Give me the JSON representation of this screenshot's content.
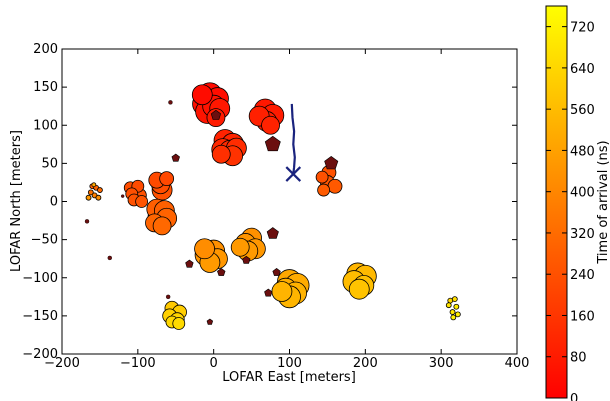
{
  "chart_data": {
    "type": "scatter",
    "xlabel": "LOFAR East [meters]",
    "ylabel": "LOFAR North [meters]",
    "xlim": [
      -200,
      400
    ],
    "ylim": [
      -200,
      200
    ],
    "xticks": [
      "-200",
      "-100",
      "0",
      "100",
      "200",
      "300",
      "400"
    ],
    "yticks": [
      "-200",
      "-150",
      "-100",
      "-50",
      "0",
      "50",
      "100",
      "150",
      "200"
    ],
    "colorbar": {
      "label": "Time of arrival (ns)",
      "range": [
        0,
        760
      ],
      "colormap": "autumn",
      "ticks": [
        "0",
        "80",
        "160",
        "240",
        "320",
        "400",
        "480",
        "560",
        "640",
        "720"
      ]
    },
    "track": {
      "color": "#1a237e",
      "points": [
        [
          103,
          128
        ],
        [
          104,
          110
        ],
        [
          106,
          92
        ],
        [
          105,
          75
        ],
        [
          107,
          58
        ],
        [
          106,
          45
        ],
        [
          105,
          36
        ]
      ],
      "marker": {
        "x": 105,
        "y": 36,
        "symbol": "x"
      }
    },
    "antennas": [
      {
        "station": "A",
        "x": -5,
        "y": 140,
        "r": 12,
        "t": 30
      },
      {
        "station": "A",
        "x": 5,
        "y": 135,
        "r": 11,
        "t": 40
      },
      {
        "station": "A",
        "x": -12,
        "y": 128,
        "r": 12,
        "t": 45
      },
      {
        "station": "A",
        "x": 0,
        "y": 125,
        "r": 11,
        "t": 55
      },
      {
        "station": "A",
        "x": -8,
        "y": 118,
        "r": 12,
        "t": 60
      },
      {
        "station": "A",
        "x": 8,
        "y": 122,
        "r": 10,
        "t": 70
      },
      {
        "station": "A",
        "x": -15,
        "y": 140,
        "r": 10,
        "t": 35
      },
      {
        "station": "A",
        "x": 3,
        "y": 110,
        "r": 9,
        "t": 80
      },
      {
        "station": "B",
        "x": 68,
        "y": 120,
        "r": 11,
        "t": 70
      },
      {
        "station": "B",
        "x": 78,
        "y": 113,
        "r": 11,
        "t": 80
      },
      {
        "station": "B",
        "x": 70,
        "y": 105,
        "r": 10,
        "t": 90
      },
      {
        "station": "B",
        "x": 60,
        "y": 112,
        "r": 10,
        "t": 95
      },
      {
        "station": "B",
        "x": 75,
        "y": 100,
        "r": 9,
        "t": 100
      },
      {
        "station": "C",
        "x": 15,
        "y": 80,
        "r": 11,
        "t": 100
      },
      {
        "station": "C",
        "x": 25,
        "y": 75,
        "r": 11,
        "t": 110
      },
      {
        "station": "C",
        "x": 12,
        "y": 68,
        "r": 11,
        "t": 120
      },
      {
        "station": "C",
        "x": 22,
        "y": 66,
        "r": 11,
        "t": 125
      },
      {
        "station": "C",
        "x": 30,
        "y": 70,
        "r": 10,
        "t": 130
      },
      {
        "station": "C",
        "x": 10,
        "y": 62,
        "r": 9,
        "t": 140
      },
      {
        "station": "C",
        "x": 25,
        "y": 60,
        "r": 10,
        "t": 150
      },
      {
        "station": "D",
        "x": -75,
        "y": 28,
        "r": 8,
        "t": 220
      },
      {
        "station": "D",
        "x": -62,
        "y": 30,
        "r": 7,
        "t": 215
      },
      {
        "station": "D",
        "x": -70,
        "y": 22,
        "r": 9,
        "t": 230
      },
      {
        "station": "D",
        "x": -68,
        "y": 15,
        "r": 10,
        "t": 240
      },
      {
        "station": "E",
        "x": -110,
        "y": 18,
        "r": 6,
        "t": 230
      },
      {
        "station": "E",
        "x": -100,
        "y": 20,
        "r": 6,
        "t": 225
      },
      {
        "station": "E",
        "x": -108,
        "y": 10,
        "r": 6,
        "t": 235
      },
      {
        "station": "E",
        "x": -98,
        "y": 8,
        "r": 7,
        "t": 240
      },
      {
        "station": "E",
        "x": -105,
        "y": 2,
        "r": 6,
        "t": 245
      },
      {
        "station": "E",
        "x": -95,
        "y": 0,
        "r": 6,
        "t": 250
      },
      {
        "station": "F",
        "x": -75,
        "y": -10,
        "r": 10,
        "t": 280
      },
      {
        "station": "F",
        "x": -65,
        "y": -12,
        "r": 10,
        "t": 285
      },
      {
        "station": "F",
        "x": -72,
        "y": -20,
        "r": 11,
        "t": 290
      },
      {
        "station": "F",
        "x": -62,
        "y": -22,
        "r": 10,
        "t": 295
      },
      {
        "station": "F",
        "x": -78,
        "y": -28,
        "r": 9,
        "t": 300
      },
      {
        "station": "F",
        "x": -68,
        "y": -32,
        "r": 9,
        "t": 310
      },
      {
        "station": "G",
        "x": 143,
        "y": 32,
        "r": 6,
        "t": 240
      },
      {
        "station": "G",
        "x": 152,
        "y": 38,
        "r": 7,
        "t": 245
      },
      {
        "station": "G",
        "x": 150,
        "y": 25,
        "r": 7,
        "t": 255
      },
      {
        "station": "G",
        "x": 160,
        "y": 20,
        "r": 7,
        "t": 265
      },
      {
        "station": "G",
        "x": 145,
        "y": 15,
        "r": 6,
        "t": 270
      },
      {
        "station": "H",
        "x": -160,
        "y": 20,
        "r": 2.5,
        "t": 280
      },
      {
        "station": "H",
        "x": -155,
        "y": 18,
        "r": 2.5,
        "t": 300
      },
      {
        "station": "H",
        "x": -150,
        "y": 15,
        "r": 2.5,
        "t": 320
      },
      {
        "station": "H",
        "x": -162,
        "y": 12,
        "r": 2.5,
        "t": 340
      },
      {
        "station": "H",
        "x": -157,
        "y": 8,
        "r": 2.5,
        "t": 380
      },
      {
        "station": "H",
        "x": -152,
        "y": 5,
        "r": 2.5,
        "t": 420
      },
      {
        "station": "H",
        "x": -165,
        "y": 5,
        "r": 2.5,
        "t": 450
      },
      {
        "station": "H",
        "x": -158,
        "y": 22,
        "r": 2,
        "t": 500
      },
      {
        "station": "I",
        "x": 0,
        "y": -65,
        "r": 11,
        "t": 430
      },
      {
        "station": "I",
        "x": -10,
        "y": -70,
        "r": 11,
        "t": 440
      },
      {
        "station": "I",
        "x": 5,
        "y": -75,
        "r": 10,
        "t": 450
      },
      {
        "station": "I",
        "x": -5,
        "y": -80,
        "r": 10,
        "t": 460
      },
      {
        "station": "I",
        "x": -12,
        "y": -62,
        "r": 10,
        "t": 420
      },
      {
        "station": "J",
        "x": 50,
        "y": -48,
        "r": 10,
        "t": 430
      },
      {
        "station": "J",
        "x": 42,
        "y": -55,
        "r": 10,
        "t": 440
      },
      {
        "station": "J",
        "x": 55,
        "y": -62,
        "r": 10,
        "t": 450
      },
      {
        "station": "J",
        "x": 45,
        "y": -65,
        "r": 10,
        "t": 460
      },
      {
        "station": "J",
        "x": 35,
        "y": -60,
        "r": 9,
        "t": 455
      },
      {
        "station": "K",
        "x": 100,
        "y": -105,
        "r": 12,
        "t": 500
      },
      {
        "station": "K",
        "x": 110,
        "y": -110,
        "r": 12,
        "t": 510
      },
      {
        "station": "K",
        "x": 95,
        "y": -115,
        "r": 11,
        "t": 520
      },
      {
        "station": "K",
        "x": 108,
        "y": -120,
        "r": 11,
        "t": 530
      },
      {
        "station": "K",
        "x": 100,
        "y": -125,
        "r": 11,
        "t": 540
      },
      {
        "station": "K",
        "x": 90,
        "y": -118,
        "r": 10,
        "t": 535
      },
      {
        "station": "L",
        "x": 190,
        "y": -95,
        "r": 11,
        "t": 540
      },
      {
        "station": "L",
        "x": 200,
        "y": -98,
        "r": 11,
        "t": 550
      },
      {
        "station": "L",
        "x": 185,
        "y": -105,
        "r": 11,
        "t": 560
      },
      {
        "station": "L",
        "x": 198,
        "y": -110,
        "r": 10,
        "t": 570
      },
      {
        "station": "L",
        "x": 192,
        "y": -115,
        "r": 10,
        "t": 580
      },
      {
        "station": "M",
        "x": -55,
        "y": -140,
        "r": 7,
        "t": 600
      },
      {
        "station": "M",
        "x": -45,
        "y": -145,
        "r": 7,
        "t": 610
      },
      {
        "station": "M",
        "x": -58,
        "y": -150,
        "r": 7,
        "t": 620
      },
      {
        "station": "M",
        "x": -48,
        "y": -155,
        "r": 7,
        "t": 630
      },
      {
        "station": "M",
        "x": -55,
        "y": -158,
        "r": 6,
        "t": 640
      },
      {
        "station": "M",
        "x": -46,
        "y": -160,
        "r": 6,
        "t": 650
      },
      {
        "station": "N",
        "x": 312,
        "y": -130,
        "r": 2.5,
        "t": 640
      },
      {
        "station": "N",
        "x": 318,
        "y": -128,
        "r": 2.5,
        "t": 660
      },
      {
        "station": "N",
        "x": 310,
        "y": -136,
        "r": 2.5,
        "t": 680
      },
      {
        "station": "N",
        "x": 320,
        "y": -138,
        "r": 2.5,
        "t": 700
      },
      {
        "station": "N",
        "x": 315,
        "y": -145,
        "r": 2.5,
        "t": 690
      },
      {
        "station": "N",
        "x": 322,
        "y": -148,
        "r": 2.5,
        "t": 710
      },
      {
        "station": "N",
        "x": 316,
        "y": -152,
        "r": 2.5,
        "t": 720
      }
    ],
    "markers": [
      {
        "symbol": "pentagon",
        "x": 3,
        "y": 113,
        "size": 5
      },
      {
        "symbol": "pentagon",
        "x": 78,
        "y": 75,
        "size": 8
      },
      {
        "symbol": "pentagon",
        "x": 155,
        "y": 50,
        "size": 7
      },
      {
        "symbol": "pentagon",
        "x": -50,
        "y": 57,
        "size": 4
      },
      {
        "symbol": "pentagon",
        "x": 78,
        "y": -42,
        "size": 6
      },
      {
        "symbol": "pentagon",
        "x": 43,
        "y": -77,
        "size": 4
      },
      {
        "symbol": "pentagon",
        "x": -32,
        "y": -82,
        "size": 4
      },
      {
        "symbol": "pentagon",
        "x": 10,
        "y": -93,
        "size": 4
      },
      {
        "symbol": "pentagon",
        "x": 83,
        "y": -93,
        "size": 4
      },
      {
        "symbol": "pentagon",
        "x": 72,
        "y": -120,
        "size": 4
      },
      {
        "symbol": "pentagon",
        "x": -5,
        "y": -158,
        "size": 3
      },
      {
        "symbol": "dot",
        "x": -57,
        "y": 130,
        "size": 2
      },
      {
        "symbol": "dot",
        "x": -167,
        "y": -26,
        "size": 2
      },
      {
        "symbol": "dot",
        "x": -137,
        "y": -74,
        "size": 2
      },
      {
        "symbol": "dot",
        "x": -60,
        "y": -125,
        "size": 2
      },
      {
        "symbol": "dot",
        "x": -120,
        "y": 7,
        "size": 1.5
      }
    ]
  }
}
